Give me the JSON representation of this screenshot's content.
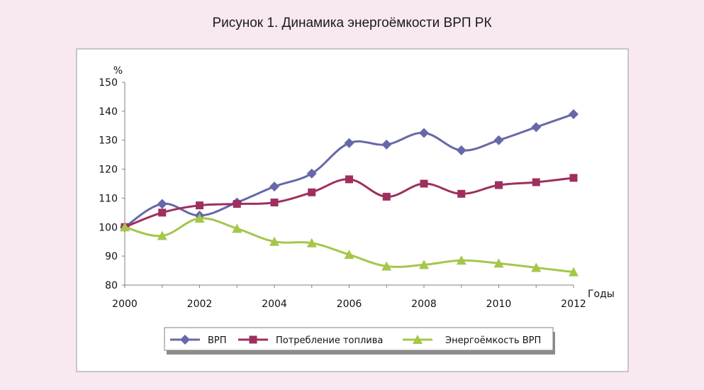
{
  "chart_data": {
    "type": "line",
    "title": "Рисунок 1. Динамика энергоёмкости ВРП РК",
    "xlabel": "Годы",
    "ylabel": "%",
    "x": [
      2000,
      2001,
      2002,
      2003,
      2004,
      2005,
      2006,
      2007,
      2008,
      2009,
      2010,
      2011,
      2012
    ],
    "xticks": [
      "2000",
      "2002",
      "2004",
      "2006",
      "2008",
      "2010",
      "2012"
    ],
    "yticks": [
      "80",
      "90",
      "100",
      "110",
      "120",
      "130",
      "140",
      "150"
    ],
    "xlim": [
      2000,
      2012
    ],
    "ylim": [
      80,
      150
    ],
    "grid": false,
    "legend_position": "bottom",
    "series": [
      {
        "name": "ВРП",
        "color": "#6668a8",
        "marker": "diamond",
        "values": [
          100,
          108,
          104,
          108.5,
          114,
          118.5,
          129,
          128.5,
          132.5,
          126.5,
          130,
          134.5,
          139
        ]
      },
      {
        "name": "Потребление топлива",
        "color": "#9e2f5e",
        "marker": "square",
        "values": [
          100,
          105,
          107.5,
          108,
          108.5,
          112,
          116.5,
          110.5,
          115,
          111.5,
          114.5,
          115.5,
          117
        ]
      },
      {
        "name": "Энергоёмкость ВРП",
        "color": "#a4c74a",
        "marker": "triangle",
        "values": [
          100,
          97,
          103,
          99.5,
          95,
          94.5,
          90.5,
          86.5,
          87,
          88.5,
          87.5,
          86,
          84.5
        ]
      }
    ]
  }
}
